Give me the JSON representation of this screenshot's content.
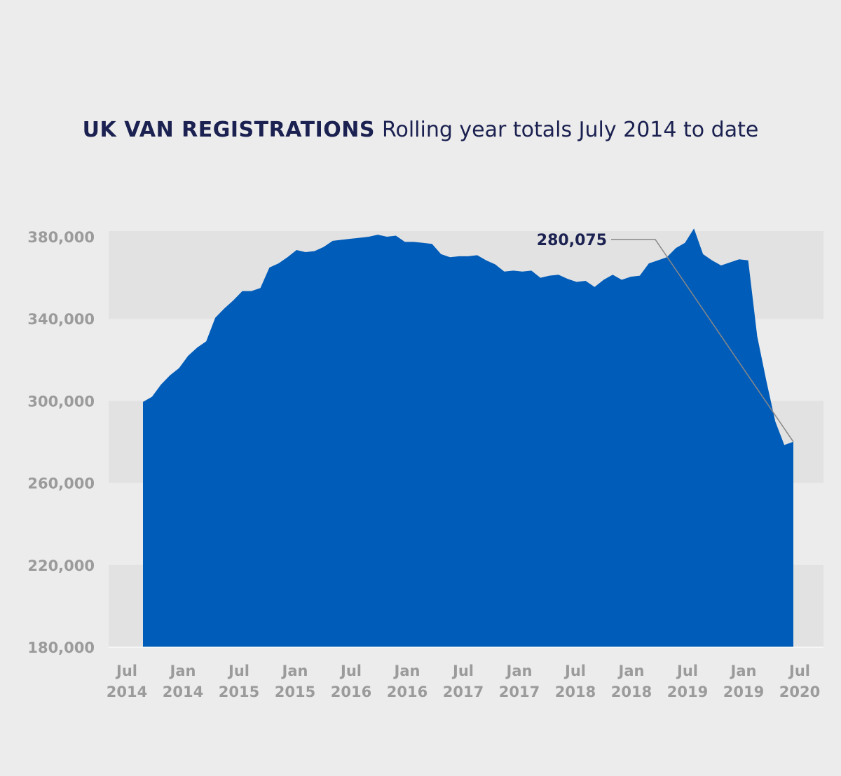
{
  "title_bold": "UK VAN REGISTRATIONS",
  "title_rest": "Rolling year totals July 2014 to date",
  "colors": {
    "background": "#ececec",
    "band": "#e2e2e2",
    "area": "#005cb9",
    "title": "#1b2150",
    "tick": "#9b9b9b",
    "leader": "#888888"
  },
  "chart_data": {
    "type": "area",
    "title": "UK VAN REGISTRATIONS Rolling year totals July 2014 to date",
    "xlabel": "",
    "ylabel": "",
    "ylim": [
      180000,
      380000
    ],
    "yticks": [
      380000,
      340000,
      300000,
      260000,
      220000,
      180000
    ],
    "ytick_labels": [
      "380,000",
      "340,000",
      "300,000",
      "260,000",
      "220,000",
      "180,000"
    ],
    "xticks": [
      {
        "top": "Jul",
        "bottom": "2014"
      },
      {
        "top": "Jan",
        "bottom": "2014"
      },
      {
        "top": "Jul",
        "bottom": "2015"
      },
      {
        "top": "Jan",
        "bottom": "2015"
      },
      {
        "top": "Jul",
        "bottom": "2016"
      },
      {
        "top": "Jan",
        "bottom": "2016"
      },
      {
        "top": "Jul",
        "bottom": "2017"
      },
      {
        "top": "Jan",
        "bottom": "2017"
      },
      {
        "top": "Jul",
        "bottom": "2018"
      },
      {
        "top": "Jan",
        "bottom": "2018"
      },
      {
        "top": "Jul",
        "bottom": "2019"
      },
      {
        "top": "Jan",
        "bottom": "2019"
      },
      {
        "top": "Jul",
        "bottom": "2020"
      }
    ],
    "grid": "alternating horizontal bands",
    "legend": "none",
    "series": [
      {
        "values": [
          299500,
          302000,
          308000,
          312500,
          316000,
          322000,
          326000,
          329000,
          340500,
          345000,
          349000,
          353500,
          353500,
          355000,
          365000,
          367000,
          370000,
          373500,
          372500,
          373000,
          375000,
          378000,
          378500,
          379000,
          379500,
          380000,
          381000,
          380000,
          380500,
          377500,
          377500,
          377000,
          376500,
          371500,
          370000,
          370500,
          370500,
          371000,
          368500,
          366500,
          363000,
          363500,
          363000,
          363500,
          360000,
          361000,
          361500,
          359500,
          358000,
          358500,
          355500,
          359000,
          361500,
          359000,
          360500,
          361000,
          367000,
          368500,
          370000,
          374500,
          377000,
          384000,
          371500,
          368500,
          366000,
          367500,
          369000,
          368500,
          331500,
          310000,
          290000,
          278500,
          280075
        ]
      }
    ],
    "annotation": {
      "label": "280,075",
      "value": 280075
    }
  }
}
